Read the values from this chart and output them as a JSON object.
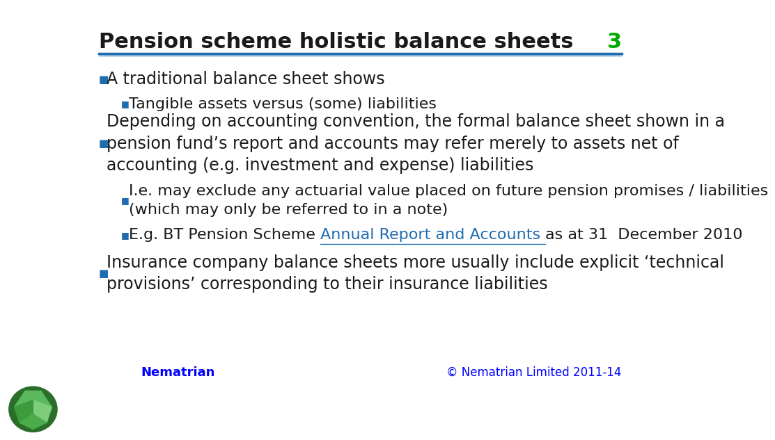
{
  "title": "Pension scheme holistic balance sheets",
  "slide_number": "3",
  "title_color": "#1a1a1a",
  "title_fontsize": 22,
  "slide_number_color": "#00aa00",
  "header_line_color": "#1f6cb0",
  "background_color": "#ffffff",
  "footer_logo_text": "Nematrian",
  "footer_logo_color": "#0000ff",
  "footer_copyright": "© Nematrian Limited 2011-14",
  "footer_copyright_color": "#0000ff",
  "bullet_color": "#1f6cb0",
  "bullet_marker": "■",
  "text_color": "#1a1a1a",
  "link_color": "#1f6cb0",
  "bullets": [
    {
      "level": 1,
      "text": "A traditional balance sheet shows",
      "fontsize": 17,
      "bold": false
    },
    {
      "level": 2,
      "text": "Tangible assets versus (some) liabilities",
      "fontsize": 16,
      "bold": false
    },
    {
      "level": 1,
      "text": "Depending on accounting convention, the formal balance sheet shown in a\npension fund’s report and accounts may refer merely to assets net of\naccounting (e.g. investment and expense) liabilities",
      "fontsize": 17,
      "bold": false
    },
    {
      "level": 2,
      "text": "I.e. may exclude any actuarial value placed on future pension promises / liabilities\n(which may only be referred to in a note)",
      "fontsize": 16,
      "bold": false
    },
    {
      "level": 2,
      "text": "E.g. BT Pension Scheme ",
      "link_text": "Annual Report and Accounts ",
      "after_link_text": "as at 31  December 2010",
      "fontsize": 16,
      "bold": false,
      "has_link": true
    },
    {
      "level": 1,
      "text": "Insurance company balance sheets more usually include explicit ‘technical\nprovisions’ corresponding to their insurance liabilities",
      "fontsize": 17,
      "bold": false
    }
  ],
  "gem_colors": {
    "outer": "#2a6e2a",
    "facet1": "#5cb85c",
    "facet2": "#7dcd7d",
    "facet3": "#3d9a3d",
    "facet4": "#4aad4a"
  }
}
